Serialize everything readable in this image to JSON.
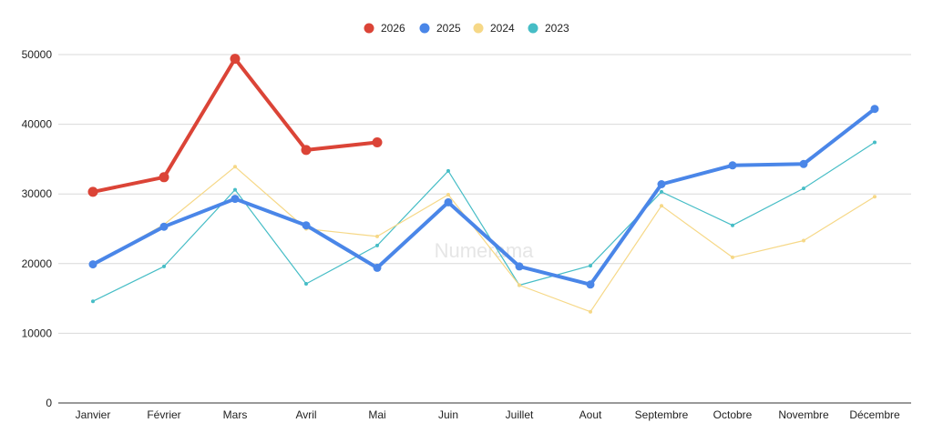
{
  "chart_data": {
    "type": "line",
    "categories": [
      "Janvier",
      "Février",
      "Mars",
      "Avril",
      "Mai",
      "Juin",
      "Juillet",
      "Aout",
      "Septembre",
      "Octobre",
      "Novembre",
      "Décembre"
    ],
    "series": [
      {
        "name": "2026",
        "color": "#db4437",
        "emphasis": "bold",
        "values": [
          30300,
          32400,
          49400,
          36300,
          37400,
          null,
          null,
          null,
          null,
          null,
          null,
          null
        ]
      },
      {
        "name": "2025",
        "color": "#4a86e8",
        "emphasis": "bold",
        "values": [
          19900,
          25300,
          29300,
          25500,
          19400,
          28800,
          19600,
          17000,
          31400,
          34100,
          34300,
          42200
        ]
      },
      {
        "name": "2024",
        "color": "#f6d887",
        "emphasis": "thin",
        "values": [
          19900,
          25600,
          33900,
          25000,
          23900,
          29900,
          16900,
          13100,
          28300,
          20900,
          23300,
          29600
        ]
      },
      {
        "name": "2023",
        "color": "#46bdc6",
        "emphasis": "thin",
        "values": [
          14600,
          19600,
          30600,
          17100,
          22600,
          33300,
          16900,
          19700,
          30300,
          25500,
          30800,
          37400
        ]
      }
    ],
    "ylim": [
      0,
      50000
    ],
    "yticks": [
      0,
      10000,
      20000,
      30000,
      40000,
      50000
    ],
    "grid": true,
    "legend_position": "top-center",
    "title": "",
    "xlabel": "",
    "ylabel": ""
  },
  "watermark": "Numerama"
}
